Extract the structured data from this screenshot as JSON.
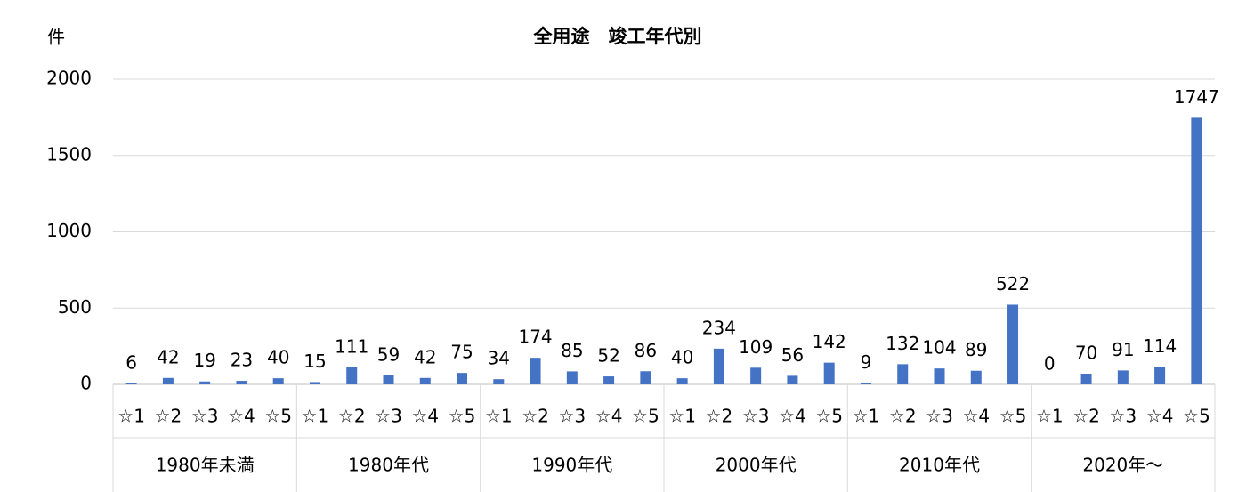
{
  "chart_data": {
    "type": "bar",
    "title": "全用途　竣工年代別",
    "y_label": "件",
    "color": "#4472c4",
    "ylim": [
      0,
      2000
    ],
    "yticks": [
      0,
      500,
      1000,
      1500,
      2000
    ],
    "grid": true,
    "groups": [
      {
        "name": "1980年未満",
        "categories": [
          "☆1",
          "☆2",
          "☆3",
          "☆4",
          "☆5"
        ],
        "values": [
          6,
          42,
          19,
          23,
          40
        ]
      },
      {
        "name": "1980年代",
        "categories": [
          "☆1",
          "☆2",
          "☆3",
          "☆4",
          "☆5"
        ],
        "values": [
          15,
          111,
          59,
          42,
          75
        ]
      },
      {
        "name": "1990年代",
        "categories": [
          "☆1",
          "☆2",
          "☆3",
          "☆4",
          "☆5"
        ],
        "values": [
          34,
          174,
          85,
          52,
          86
        ]
      },
      {
        "name": "2000年代",
        "categories": [
          "☆1",
          "☆2",
          "☆3",
          "☆4",
          "☆5"
        ],
        "values": [
          40,
          234,
          109,
          56,
          142
        ]
      },
      {
        "name": "2010年代",
        "categories": [
          "☆1",
          "☆2",
          "☆3",
          "☆4",
          "☆5"
        ],
        "values": [
          9,
          132,
          104,
          89,
          522
        ]
      },
      {
        "name": "2020年～",
        "categories": [
          "☆1",
          "☆2",
          "☆3",
          "☆4",
          "☆5"
        ],
        "values": [
          0,
          70,
          91,
          114,
          1747
        ]
      }
    ]
  }
}
